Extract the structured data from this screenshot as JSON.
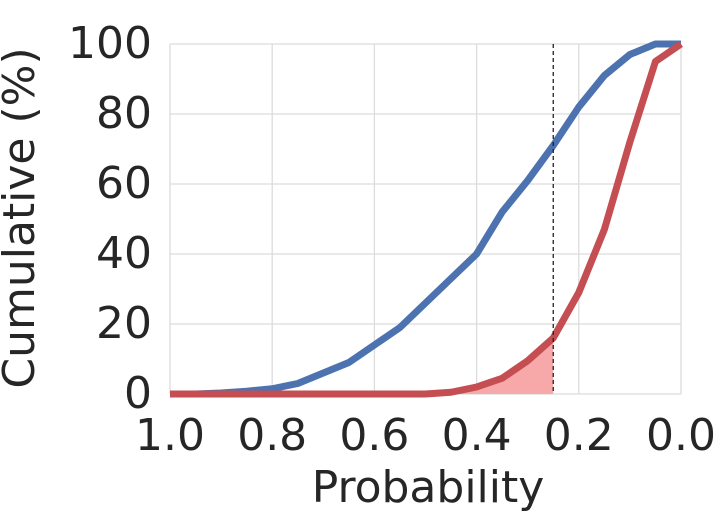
{
  "chart_data": {
    "type": "line",
    "x": [
      1.0,
      0.95,
      0.9,
      0.85,
      0.8,
      0.75,
      0.7,
      0.65,
      0.6,
      0.55,
      0.5,
      0.45,
      0.4,
      0.35,
      0.3,
      0.25,
      0.2,
      0.15,
      0.1,
      0.05,
      0.0
    ],
    "series": [
      {
        "color": "#4c72b0",
        "values": [
          0,
          0,
          0.3,
          0.8,
          1.5,
          3,
          6,
          9,
          14,
          19,
          26,
          33,
          40,
          52,
          61,
          71,
          82,
          91,
          97,
          100,
          100
        ]
      },
      {
        "color": "#c44e52",
        "values": [
          0,
          0,
          0,
          0,
          0,
          0,
          0,
          0,
          0,
          0,
          0,
          0.5,
          2,
          4.5,
          9.5,
          16,
          29,
          47,
          72,
          95,
          100
        ]
      }
    ],
    "x_label": "Probability",
    "y_label": "Cumulative (%)",
    "xlim": [
      1.0,
      0.0
    ],
    "xticks": [
      {
        "value": 1.0,
        "label": "1.0"
      },
      0.8,
      0.6,
      0.4,
      0.2,
      {
        "value": 0.0,
        "label": "0.0"
      }
    ],
    "ylim": [
      0,
      100
    ],
    "yticks": [
      0,
      20,
      40,
      60,
      80,
      100
    ],
    "grid": true,
    "threshold": 0.25,
    "fill_color": "#f7a8a8"
  }
}
